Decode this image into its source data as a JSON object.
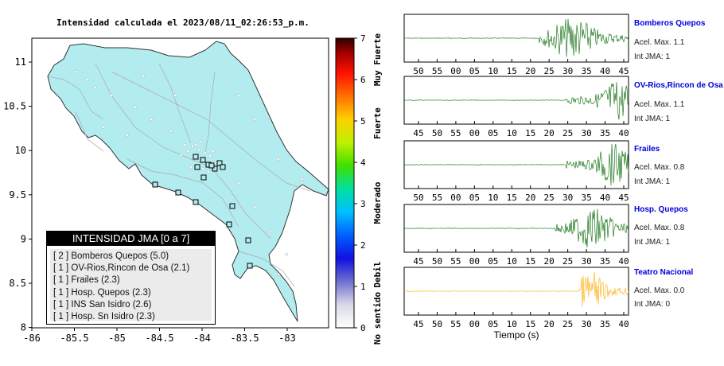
{
  "map": {
    "title": "Intensidad calculada el 2023/08/11_02:26:53_p.m.",
    "x_ticks": [
      "-86",
      "-85.5",
      "-85",
      "-84.5",
      "-84",
      "-83.5",
      "-83"
    ],
    "y_ticks": [
      "11",
      "10.5",
      "10",
      "9.5",
      "9",
      "8.5",
      "8"
    ],
    "colorbar_ticks": [
      "7",
      "6",
      "5",
      "4",
      "3",
      "2",
      "1",
      "0"
    ],
    "colorbar_labels": [
      "Muy Fuerte",
      "Fuerte",
      "Moderado",
      "Debil",
      "No sentido"
    ],
    "land_color": "#b3ecee",
    "station_marker": "square-marker"
  },
  "legend": {
    "header": "INTENSIDAD JMA [0 a 7]",
    "rows": [
      "[ 2 ]  Bomberos Quepos (5.0)",
      "[ 1 ]  OV-Rios,Rincon de Osa (2.1)",
      "[ 1 ]  Frailes (2.3)",
      "[ 1 ]  Hosp. Quepos (2.3)",
      "[ 1 ]  INS San Isidro (2.6)",
      "[ 1 ]  Hosp. Sn Isidro (2.3)"
    ]
  },
  "traces": [
    {
      "name": "Bomberos Quepos",
      "acel": "Acel. Max. 1.1",
      "int": "Int JMA: 1",
      "ticks": [
        "50",
        "55",
        "00",
        "05",
        "10",
        "15",
        "20",
        "25",
        "30",
        "35",
        "40",
        "45"
      ],
      "color": "#006600",
      "onset": 0.6,
      "peak": 0.75,
      "end": 1.0
    },
    {
      "name": "OV-Rios,Rincon de Osa",
      "acel": "Acel. Max. 1.1",
      "int": "Int JMA: 1",
      "ticks": [
        "45",
        "50",
        "55",
        "00",
        "05",
        "10",
        "15",
        "20",
        "25",
        "30",
        "35",
        "40"
      ],
      "color": "#006600",
      "onset": 0.72,
      "peak": 0.95,
      "end": 1.0
    },
    {
      "name": "Frailes",
      "acel": "Acel. Max. 0.8",
      "int": "Int JMA: 1",
      "ticks": [
        "50",
        "55",
        "00",
        "05",
        "10",
        "15",
        "20",
        "25",
        "30",
        "35",
        "40",
        "45"
      ],
      "color": "#006600",
      "onset": 0.72,
      "peak": 0.93,
      "end": 1.0
    },
    {
      "name": "Hosp. Quepos",
      "acel": "Acel. Max. 0.8",
      "int": "Int JMA: 1",
      "ticks": [
        "45",
        "50",
        "55",
        "00",
        "05",
        "10",
        "15",
        "20",
        "25",
        "30",
        "35",
        "40"
      ],
      "color": "#006600",
      "onset": 0.67,
      "peak": 0.84,
      "end": 1.0
    },
    {
      "name": "Teatro Nacional",
      "acel": "Acel. Max. 0.0",
      "int": "Int JMA: 0",
      "ticks": [
        "45",
        "50",
        "55",
        "00",
        "05",
        "10",
        "15",
        "20",
        "25",
        "30",
        "35",
        "40"
      ],
      "color": "#ffaa00",
      "onset": 0.78,
      "peak": 0.83,
      "end": 1.0
    }
  ],
  "xaxis_title": "Tiempo (s)",
  "chart_data": [
    {
      "type": "scatter",
      "title": "Intensidad calculada el 2023/08/11_02:26:53_p.m.",
      "xlim": [
        -86,
        -82.5
      ],
      "ylim": [
        8,
        11.3
      ],
      "colorbar": {
        "range": [
          0,
          7
        ],
        "labels": [
          "No sentido",
          "Debil",
          "Moderado",
          "Fuerte",
          "Muy Fuerte"
        ]
      }
    },
    {
      "type": "line",
      "xlabel": "Tiempo (s)",
      "series": [
        {
          "name": "Bomberos Quepos",
          "max_accel": 1.1,
          "jma": 1
        },
        {
          "name": "OV-Rios,Rincon de Osa",
          "max_accel": 1.1,
          "jma": 1
        },
        {
          "name": "Frailes",
          "max_accel": 0.8,
          "jma": 1
        },
        {
          "name": "Hosp. Quepos",
          "max_accel": 0.8,
          "jma": 1
        },
        {
          "name": "Teatro Nacional",
          "max_accel": 0.0,
          "jma": 0
        }
      ]
    }
  ]
}
